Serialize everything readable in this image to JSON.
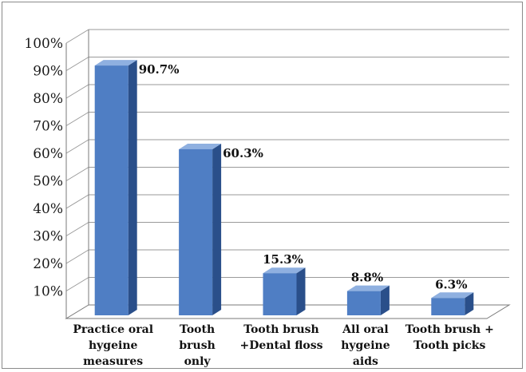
{
  "chart_data": {
    "type": "bar",
    "title": "",
    "xlabel": "",
    "ylabel": "",
    "ylim": [
      0,
      100
    ],
    "yticks": [
      "",
      "10%",
      "20%",
      "30%",
      "40%",
      "50%",
      "60%",
      "70%",
      "80%",
      "90%",
      "100%"
    ],
    "categories": [
      [
        "Practice oral",
        "hygeine",
        "measures"
      ],
      [
        "Tooth",
        "brush",
        "only"
      ],
      [
        "Tooth brush",
        "+Dental floss"
      ],
      [
        "All oral",
        "hygeine",
        "aids"
      ],
      [
        "Tooth brush +",
        "Tooth picks"
      ]
    ],
    "values": [
      90.7,
      60.3,
      15.3,
      8.8,
      6.3
    ],
    "data_labels": [
      "90.7%",
      "60.3%",
      "15.3%",
      "8.8%",
      "6.3%"
    ],
    "grid": true,
    "style": "3d-column",
    "colors": {
      "front": "#4f7ec4",
      "side": "#2a4f8a",
      "top": "#8fb0e0",
      "grid": "#9a9a9a",
      "axis": "#7a7a7a"
    }
  }
}
